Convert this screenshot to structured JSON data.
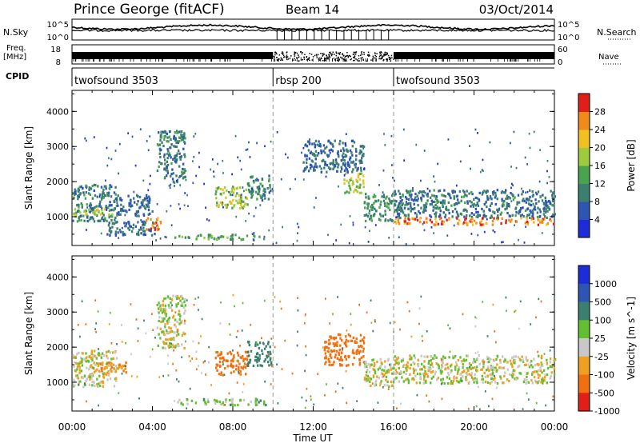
{
  "header": {
    "station": "Prince George (fitACF)",
    "beam": "Beam 14",
    "date": "03/Oct/2014"
  },
  "summary": {
    "nsky_label": "N.Sky",
    "nsearch_label": "N.Search",
    "nsky_ticks": [
      "10^5",
      "10^0"
    ],
    "nsearch_ticks": [
      "10^5",
      "10^0"
    ],
    "freq_label": "Freq.",
    "freq_unit": "[MHz]",
    "freq_ticks": [
      "18",
      "8"
    ],
    "nave_label": "Nave",
    "nave_ticks": [
      "60",
      "0"
    ],
    "cpid_label": "CPID",
    "modes": [
      {
        "name": "twofsound",
        "id": "3503",
        "start_hour": 0,
        "end_hour": 10
      },
      {
        "name": "rbsp",
        "id": "200",
        "start_hour": 10,
        "end_hour": 16
      },
      {
        "name": "twofsound",
        "id": "3503",
        "start_hour": 16,
        "end_hour": 24
      }
    ]
  },
  "chart_data": [
    {
      "type": "heatmap",
      "title": "",
      "xlabel": "Time UT",
      "ylabel": "Slant Range [km]",
      "xlim": [
        0,
        24
      ],
      "ylim": [
        180,
        4600
      ],
      "x_ticks": [
        "00:00",
        "04:00",
        "08:00",
        "12:00",
        "16:00",
        "20:00",
        "00:00"
      ],
      "y_ticks": [
        "1000",
        "2000",
        "3000",
        "4000"
      ],
      "colorbar": {
        "label": "Power [dB]",
        "ticks": [
          "4",
          "8",
          "12",
          "16",
          "20",
          "24",
          "28"
        ],
        "colors": [
          "#1c2cd6",
          "#2f55b4",
          "#3b7f6e",
          "#4aa34f",
          "#9ccc3c",
          "#f2c020",
          "#f08a1a",
          "#e02018"
        ]
      },
      "echo_regions": [
        {
          "t0": 0.0,
          "t1": 2.2,
          "r0": 900,
          "r1": 1950,
          "level": 10
        },
        {
          "t0": 0.0,
          "t1": 2.2,
          "r0": 1050,
          "r1": 1250,
          "level": 18
        },
        {
          "t0": 2.2,
          "t1": 4.0,
          "r0": 1050,
          "r1": 1650,
          "level": 8
        },
        {
          "t0": 1.7,
          "t1": 4.1,
          "r0": 500,
          "r1": 900,
          "level": 8
        },
        {
          "t0": 3.6,
          "t1": 4.4,
          "r0": 650,
          "r1": 1000,
          "level": 26
        },
        {
          "t0": 4.2,
          "t1": 5.6,
          "r0": 2000,
          "r1": 3500,
          "level": 10
        },
        {
          "t0": 5.0,
          "t1": 9.6,
          "r0": 380,
          "r1": 520,
          "level": 14
        },
        {
          "t0": 7.1,
          "t1": 8.7,
          "r0": 1250,
          "r1": 1900,
          "level": 18
        },
        {
          "t0": 8.7,
          "t1": 9.9,
          "r0": 1500,
          "r1": 2200,
          "level": 10
        },
        {
          "t0": 11.4,
          "t1": 14.5,
          "r0": 2300,
          "r1": 3200,
          "level": 8
        },
        {
          "t0": 13.5,
          "t1": 14.5,
          "r0": 1700,
          "r1": 2300,
          "level": 18
        },
        {
          "t0": 14.5,
          "t1": 16.0,
          "r0": 900,
          "r1": 1700,
          "level": 12
        },
        {
          "t0": 16.0,
          "t1": 24.0,
          "r0": 1000,
          "r1": 1800,
          "level": 9
        },
        {
          "t0": 16.0,
          "t1": 24.0,
          "r0": 800,
          "r1": 1000,
          "level": 26
        }
      ]
    },
    {
      "type": "heatmap",
      "title": "",
      "xlabel": "Time UT",
      "ylabel": "Slant Range [km]",
      "xlim": [
        0,
        24
      ],
      "ylim": [
        180,
        4600
      ],
      "x_ticks": [
        "00:00",
        "04:00",
        "08:00",
        "12:00",
        "16:00",
        "20:00",
        "00:00"
      ],
      "y_ticks": [
        "1000",
        "2000",
        "3000",
        "4000"
      ],
      "colorbar": {
        "label": "Velocity [m s^-1]",
        "ticks": [
          "1000",
          "500",
          "100",
          "25",
          "-25",
          "-100",
          "-500",
          "-1000"
        ],
        "colors": [
          "#1c2cd6",
          "#2f55b4",
          "#3b7f6e",
          "#62c030",
          "#c8c8c8",
          "#f0a020",
          "#f07010",
          "#e02018"
        ]
      },
      "echo_regions": [
        {
          "t0": 0.0,
          "t1": 2.2,
          "r0": 900,
          "r1": 1950,
          "level": 0
        },
        {
          "t0": 1.0,
          "t1": 3.0,
          "r0": 1300,
          "r1": 1600,
          "level": -80
        },
        {
          "t0": 4.2,
          "t1": 5.6,
          "r0": 2000,
          "r1": 3500,
          "level": 0
        },
        {
          "t0": 5.0,
          "t1": 9.6,
          "r0": 380,
          "r1": 560,
          "level": 40
        },
        {
          "t0": 7.1,
          "t1": 8.7,
          "r0": 1250,
          "r1": 1900,
          "level": -300
        },
        {
          "t0": 8.7,
          "t1": 9.9,
          "r0": 1500,
          "r1": 2200,
          "level": 300
        },
        {
          "t0": 12.5,
          "t1": 14.5,
          "r0": 1500,
          "r1": 2400,
          "level": -300
        },
        {
          "t0": 14.5,
          "t1": 16.0,
          "r0": 900,
          "r1": 1700,
          "level": 0
        },
        {
          "t0": 16.0,
          "t1": 24.0,
          "r0": 1000,
          "r1": 1800,
          "level": 0
        }
      ]
    }
  ]
}
